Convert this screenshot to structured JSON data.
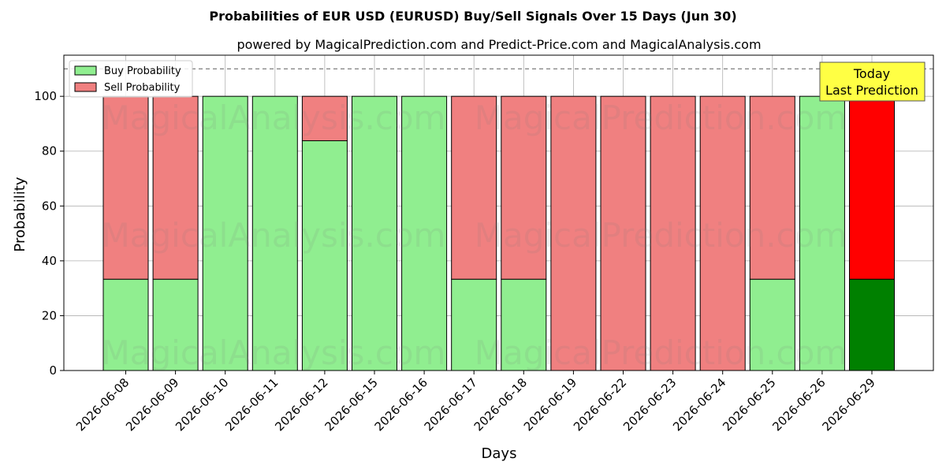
{
  "chart_data": {
    "type": "bar",
    "stacked": true,
    "title": "Probabilities of EUR USD (EURUSD) Buy/Sell Signals Over 15 Days (Jun 30)",
    "subtitle": "powered by MagicalPrediction.com and Predict-Price.com and MagicalAnalysis.com",
    "xlabel": "Days",
    "ylabel": "Probability",
    "ylim": [
      0,
      115
    ],
    "yticks": [
      0,
      20,
      40,
      60,
      80,
      100
    ],
    "reference_line": 110,
    "grid": true,
    "legend_placement": "top-left",
    "categories": [
      "2026-06-08",
      "2026-06-09",
      "2026-06-10",
      "2026-06-11",
      "2026-06-12",
      "2026-06-15",
      "2026-06-16",
      "2026-06-17",
      "2026-06-18",
      "2026-06-19",
      "2026-06-22",
      "2026-06-23",
      "2026-06-24",
      "2026-06-25",
      "2026-06-26",
      "2026-06-29"
    ],
    "series": [
      {
        "name": "Buy Probability",
        "color": "#90ee90",
        "highlight_color": "#008000",
        "values": [
          33.3,
          33.3,
          100,
          100,
          83.8,
          100,
          100,
          33.3,
          33.3,
          0,
          0,
          0,
          0,
          33.3,
          100,
          33.3
        ]
      },
      {
        "name": "Sell Probability",
        "color": "#f08080",
        "highlight_color": "#ff0000",
        "values": [
          66.7,
          66.7,
          0,
          0,
          16.2,
          0,
          0,
          66.7,
          66.7,
          100,
          100,
          100,
          100,
          66.7,
          0,
          66.7
        ]
      }
    ],
    "highlight_index": 15,
    "annotation": {
      "line1": "Today",
      "line2": "Last Prediction",
      "bg_color": "#ffff44"
    },
    "watermarks": [
      "MagicalAnalysis.com",
      "MagicalPrediction.com"
    ]
  }
}
